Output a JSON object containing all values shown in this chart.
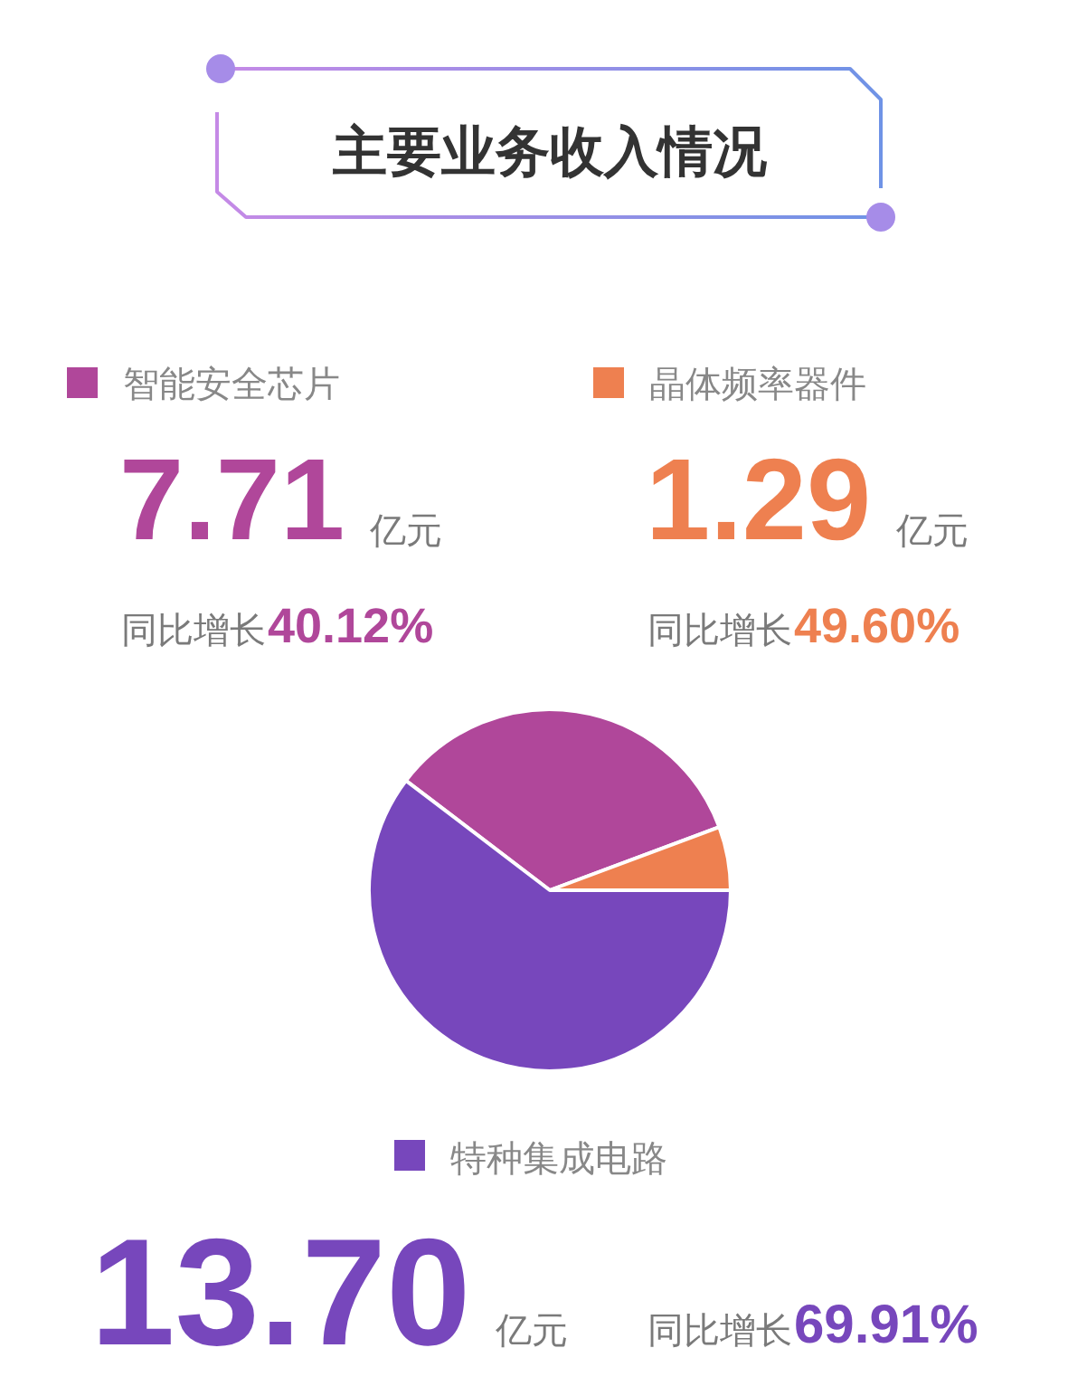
{
  "chart_data": {
    "type": "pie",
    "title": "主要业务收入情况",
    "categories": [
      "智能安全芯片",
      "晶体频率器件",
      "特种集成电路"
    ],
    "values": [
      7.71,
      1.29,
      13.7
    ],
    "colors": [
      "#b0479a",
      "#ee8050",
      "#7747bc"
    ],
    "value_labels": [
      "7.71",
      "1.29",
      "13.70"
    ],
    "legend": "top",
    "annotations": [
      "亿元",
      "同比增长",
      "40.12%",
      "亿元",
      "同比增长",
      "49.60%",
      "亿元",
      "同比增长",
      "69.91%"
    ]
  }
}
